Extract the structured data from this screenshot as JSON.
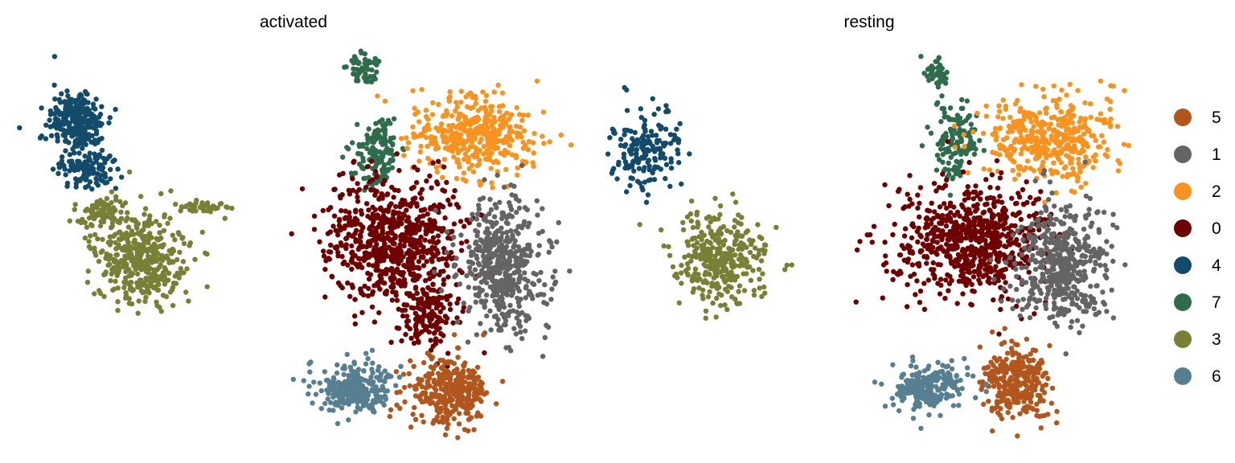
{
  "chart_data": {
    "type": "scatter",
    "panels": [
      {
        "title": "activated"
      },
      {
        "title": "resting"
      }
    ],
    "legend": {
      "placement": "right",
      "entries": [
        {
          "label": "5",
          "color": "#B1561C"
        },
        {
          "label": "1",
          "color": "#646464"
        },
        {
          "label": "2",
          "color": "#F7931E"
        },
        {
          "label": "0",
          "color": "#6E0000"
        },
        {
          "label": "4",
          "color": "#134B6B"
        },
        {
          "label": "7",
          "color": "#2E6C4C"
        },
        {
          "label": "3",
          "color": "#7A7F36"
        },
        {
          "label": "6",
          "color": "#577F92"
        }
      ]
    },
    "grid": false,
    "axes_visible": false
  }
}
